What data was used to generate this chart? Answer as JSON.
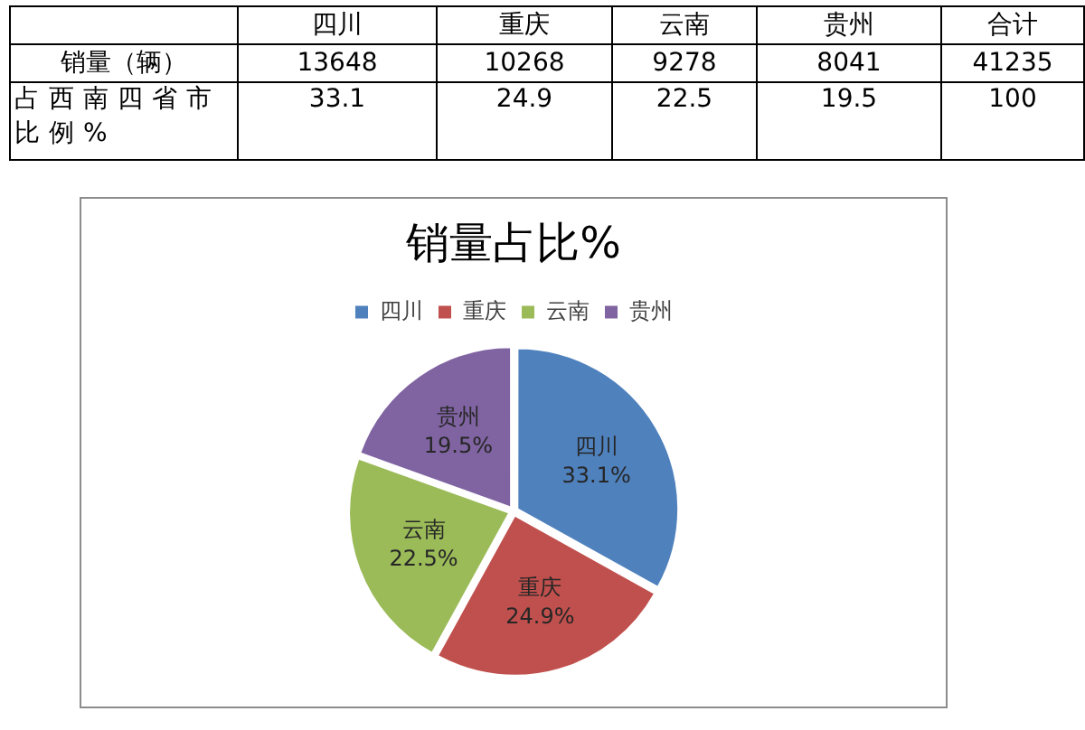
{
  "chart_data": [
    {
      "type": "other",
      "categories": [
        "四川",
        "重庆",
        "云南",
        "贵州",
        "合计"
      ],
      "series": [
        {
          "name": "销量（辆）",
          "values": [
            13648,
            10268,
            9278,
            8041,
            41235
          ]
        },
        {
          "name": "占西南四省市比例%",
          "values": [
            33.1,
            24.9,
            22.5,
            19.5,
            100
          ]
        }
      ],
      "data_labels": true
    },
    {
      "type": "pie",
      "title": "销量占比%",
      "categories": [
        "四川",
        "重庆",
        "云南",
        "贵州"
      ],
      "values": [
        33.1,
        24.9,
        22.5,
        19.5
      ],
      "colors": [
        "#4f81bd",
        "#c0504d",
        "#9bbb59",
        "#8064a2"
      ],
      "value_labels": [
        "33.1%",
        "24.9%",
        "22.5%",
        "19.5%"
      ],
      "legend": "top"
    }
  ]
}
